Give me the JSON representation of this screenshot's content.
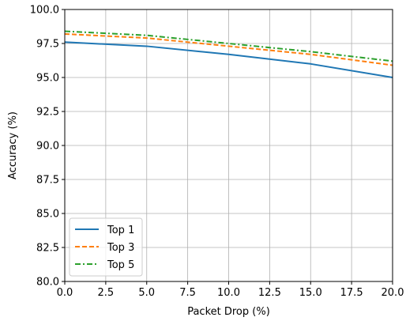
{
  "chart_data": {
    "type": "line",
    "xlabel": "Packet Drop (%)",
    "ylabel": "Accuracy (%)",
    "xlim": [
      0,
      20
    ],
    "ylim": [
      80,
      100
    ],
    "x_ticks": [
      0,
      2.5,
      5,
      7.5,
      10,
      12.5,
      15,
      17.5,
      20
    ],
    "x_tick_labels": [
      "0.0",
      "2.5",
      "5.0",
      "7.5",
      "10.0",
      "12.5",
      "15.0",
      "17.5",
      "20.0"
    ],
    "y_ticks": [
      80,
      82.5,
      85,
      87.5,
      90,
      92.5,
      95,
      97.5,
      100
    ],
    "y_tick_labels": [
      "80.0",
      "82.5",
      "85.0",
      "87.5",
      "90.0",
      "92.5",
      "95.0",
      "97.5",
      "100.0"
    ],
    "grid": true,
    "legend_position": "lower-left",
    "x": [
      0,
      5,
      10,
      15,
      20
    ],
    "series": [
      {
        "name": "Top 1",
        "color": "#1f77b4",
        "line_style": "solid",
        "values": [
          97.6,
          97.3,
          96.7,
          96.0,
          95.0
        ]
      },
      {
        "name": "Top 3",
        "color": "#ff7f0e",
        "line_style": "dashed",
        "values": [
          98.2,
          97.9,
          97.3,
          96.7,
          95.9
        ]
      },
      {
        "name": "Top 5",
        "color": "#2ca02c",
        "line_style": "dashdot",
        "values": [
          98.4,
          98.1,
          97.5,
          96.9,
          96.2
        ]
      }
    ]
  }
}
